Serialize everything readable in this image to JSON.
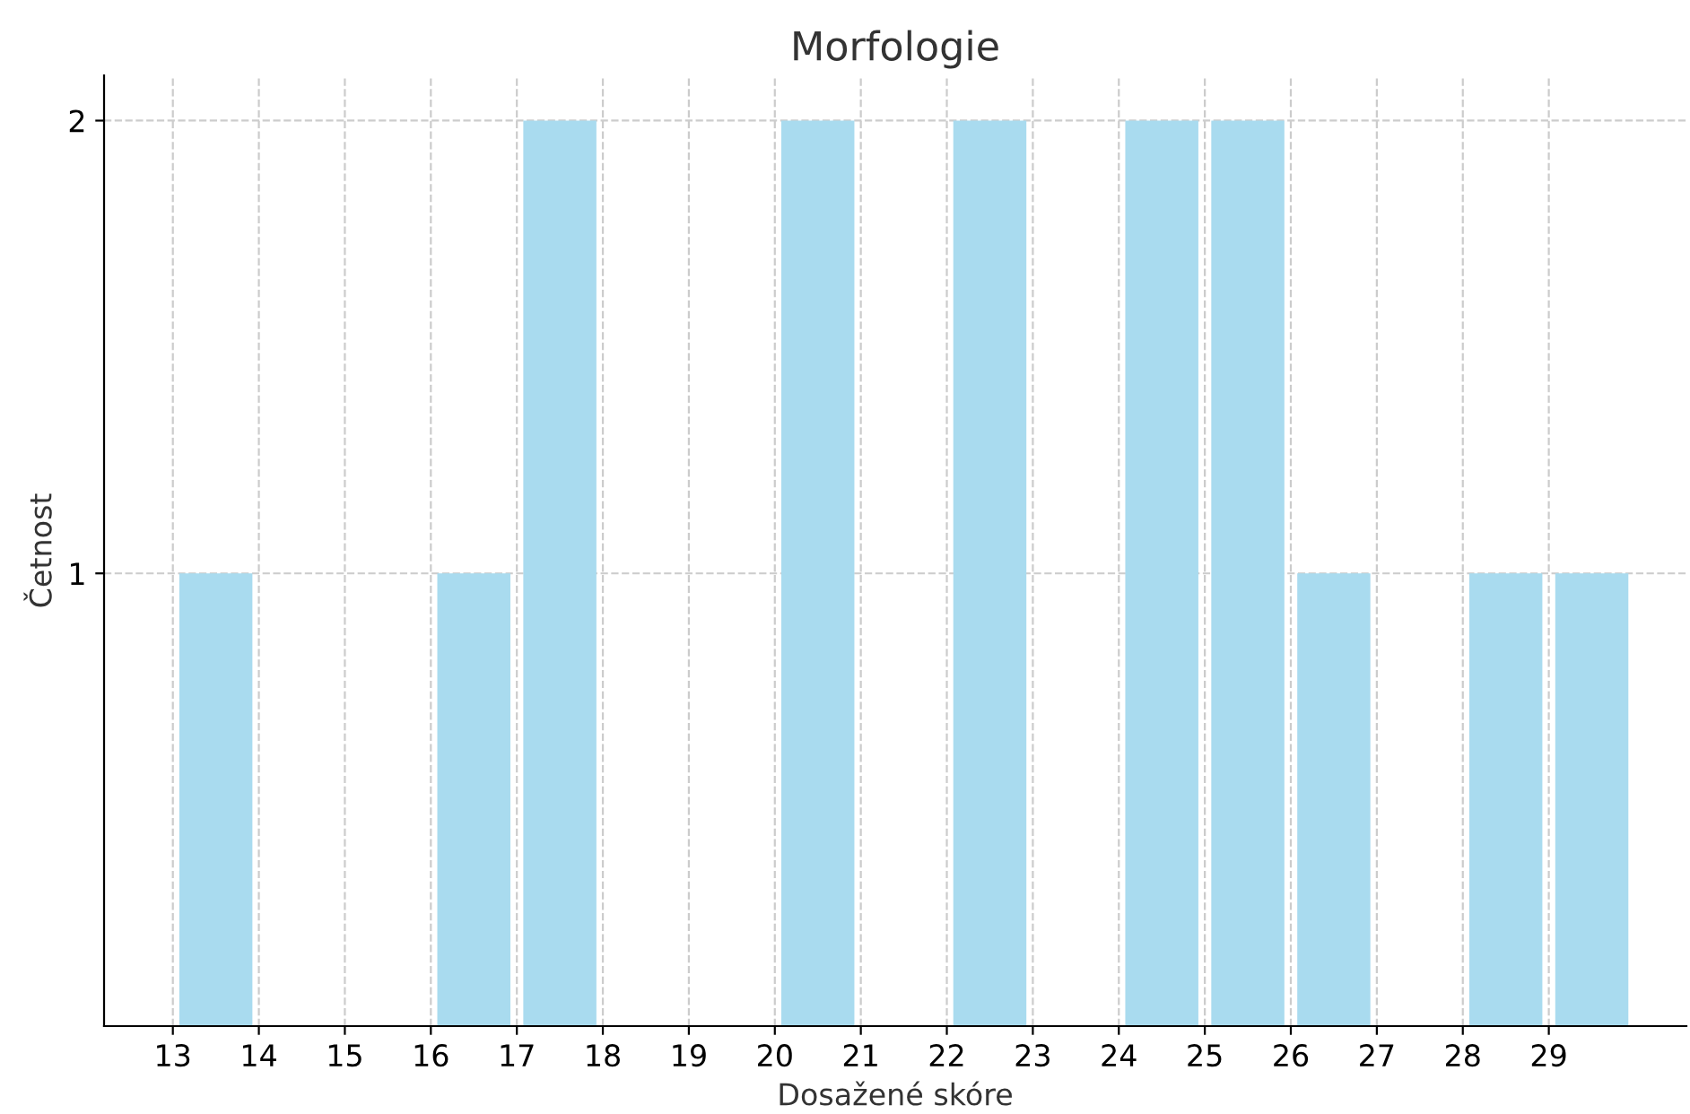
{
  "chart_data": {
    "type": "histogram",
    "title": "Morfologie",
    "xlabel": "Dosažené skóre",
    "ylabel": "Četnost",
    "bins": [
      13,
      14,
      15,
      16,
      17,
      18,
      19,
      20,
      21,
      22,
      23,
      24,
      25,
      26,
      27,
      28,
      29,
      30
    ],
    "values": [
      1,
      0,
      0,
      1,
      2,
      0,
      0,
      2,
      0,
      2,
      0,
      2,
      2,
      1,
      0,
      1,
      1
    ],
    "color": "#a9dbef",
    "xlim": [
      12.2,
      30.6
    ],
    "xticks": [
      13,
      14,
      15,
      16,
      17,
      18,
      19,
      20,
      21,
      22,
      23,
      24,
      25,
      26,
      27,
      28,
      29
    ],
    "ylim": [
      0,
      2.1
    ],
    "yticks": [
      1,
      2
    ],
    "grid": true
  }
}
